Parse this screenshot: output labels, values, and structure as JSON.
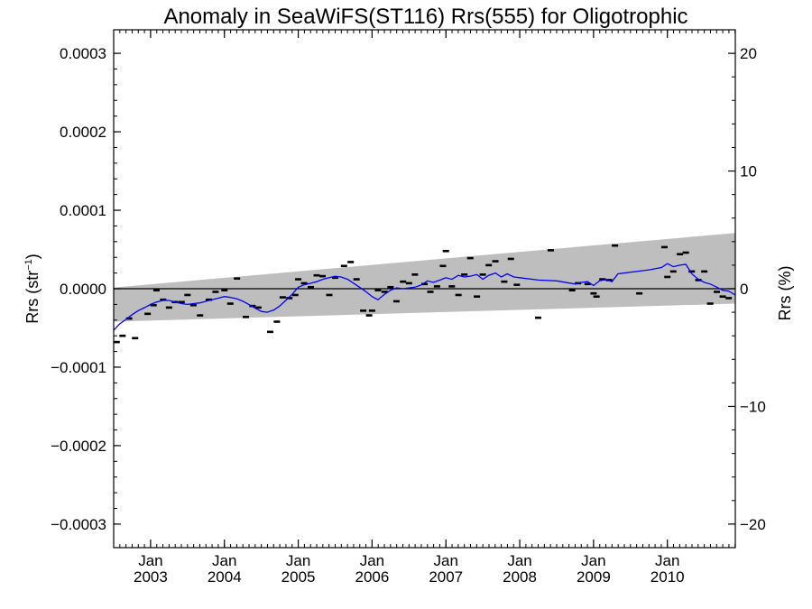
{
  "chart_data": {
    "type": "line",
    "title": "Anomaly in SeaWiFS(ST116) Rrs(555) for Oligotrophic",
    "ylabel_left": "Rrs (str",
    "ylabel_left_sup": "−1",
    "ylabel_left_close": ")",
    "ylabel_right": "Rrs (%)",
    "xlim": [
      2002.5,
      2010.92
    ],
    "ylim": [
      -0.00033,
      0.00033
    ],
    "ylim_right": [
      -22,
      22
    ],
    "x_ticks": [
      {
        "x": 2003.0,
        "month": "Jan",
        "year": "2003"
      },
      {
        "x": 2004.0,
        "month": "Jan",
        "year": "2004"
      },
      {
        "x": 2005.0,
        "month": "Jan",
        "year": "2005"
      },
      {
        "x": 2006.0,
        "month": "Jan",
        "year": "2006"
      },
      {
        "x": 2007.0,
        "month": "Jan",
        "year": "2007"
      },
      {
        "x": 2008.0,
        "month": "Jan",
        "year": "2008"
      },
      {
        "x": 2009.0,
        "month": "Jan",
        "year": "2009"
      },
      {
        "x": 2010.0,
        "month": "Jan",
        "year": "2010"
      }
    ],
    "y_ticks_left": [
      {
        "v": 0.0003,
        "label": "0.0003"
      },
      {
        "v": 0.0002,
        "label": "0.0002"
      },
      {
        "v": 0.0001,
        "label": "0.0001"
      },
      {
        "v": 0.0,
        "label": "0.0000"
      },
      {
        "v": -0.0001,
        "label": "−0.0001"
      },
      {
        "v": -0.0002,
        "label": "−0.0002"
      },
      {
        "v": -0.0003,
        "label": "−0.0003"
      }
    ],
    "y_ticks_right": [
      {
        "v": 20,
        "label": "20"
      },
      {
        "v": 10,
        "label": "10"
      },
      {
        "v": 0,
        "label": "0"
      },
      {
        "v": -10,
        "label": "−10"
      },
      {
        "v": -20,
        "label": "−20"
      }
    ],
    "uncertainty_band": {
      "x": [
        2002.5,
        2010.92
      ],
      "upper": [
        1.5e-06,
        7.1e-05
      ],
      "lower": [
        -4.2e-05,
        -1.9e-05
      ],
      "color": "#bebebe"
    },
    "zero_line": 0,
    "monthly_anomalies": {
      "marker": "dash",
      "color": "#000000",
      "points": [
        [
          2002.54,
          -6.8e-05
        ],
        [
          2002.62,
          -6e-05
        ],
        [
          2002.71,
          -3.8e-05
        ],
        [
          2002.79,
          -6.3e-05
        ],
        [
          2002.96,
          -3.2e-05
        ],
        [
          2003.04,
          -2.1e-05
        ],
        [
          2003.08,
          -2e-06
        ],
        [
          2003.17,
          -1.4e-05
        ],
        [
          2003.25,
          -2.4e-05
        ],
        [
          2003.33,
          -1.7e-05
        ],
        [
          2003.42,
          -1.7e-05
        ],
        [
          2003.5,
          -8e-06
        ],
        [
          2003.58,
          -2.1e-05
        ],
        [
          2003.67,
          -3.4e-05
        ],
        [
          2003.79,
          -1.4e-05
        ],
        [
          2003.88,
          -4e-06
        ],
        [
          2004.0,
          -2e-06
        ],
        [
          2004.08,
          -1.9e-05
        ],
        [
          2004.17,
          1.3e-05
        ],
        [
          2004.29,
          -3.6e-05
        ],
        [
          2004.38,
          -2.2e-05
        ],
        [
          2004.46,
          -2.4e-05
        ],
        [
          2004.62,
          -5.5e-05
        ],
        [
          2004.71,
          -4.2e-05
        ],
        [
          2004.79,
          -1.1e-05
        ],
        [
          2004.88,
          -1.2e-05
        ],
        [
          2004.96,
          -8e-06
        ],
        [
          2005.0,
          1.2e-05
        ],
        [
          2005.08,
          7e-06
        ],
        [
          2005.17,
          2e-06
        ],
        [
          2005.25,
          1.7e-05
        ],
        [
          2005.33,
          1.6e-05
        ],
        [
          2005.42,
          -8e-06
        ],
        [
          2005.5,
          1.4e-05
        ],
        [
          2005.62,
          2.9e-05
        ],
        [
          2005.71,
          3.4e-05
        ],
        [
          2005.79,
          1.2e-05
        ],
        [
          2005.88,
          -2.8e-05
        ],
        [
          2005.96,
          -3.4e-05
        ],
        [
          2006.0,
          -2.8e-05
        ],
        [
          2006.08,
          -2e-06
        ],
        [
          2006.17,
          -4e-06
        ],
        [
          2006.25,
          2e-06
        ],
        [
          2006.33,
          -1.6e-05
        ],
        [
          2006.42,
          9e-06
        ],
        [
          2006.5,
          7e-06
        ],
        [
          2006.58,
          1.8e-05
        ],
        [
          2006.71,
          6e-06
        ],
        [
          2006.79,
          -4e-06
        ],
        [
          2006.88,
          3e-06
        ],
        [
          2006.96,
          2.9e-05
        ],
        [
          2007.0,
          4.8e-05
        ],
        [
          2007.08,
          3e-06
        ],
        [
          2007.17,
          -8e-06
        ],
        [
          2007.25,
          1.8e-05
        ],
        [
          2007.33,
          3.9e-05
        ],
        [
          2007.42,
          -1e-05
        ],
        [
          2007.5,
          1.8e-05
        ],
        [
          2007.58,
          3e-05
        ],
        [
          2007.67,
          3.5e-05
        ],
        [
          2007.79,
          9e-06
        ],
        [
          2007.88,
          3.8e-05
        ],
        [
          2007.96,
          5e-06
        ],
        [
          2008.25,
          -3.7e-05
        ],
        [
          2008.42,
          4.9e-05
        ],
        [
          2008.71,
          -2e-06
        ],
        [
          2008.79,
          7e-06
        ],
        [
          2008.92,
          6e-06
        ],
        [
          2009.0,
          -6e-06
        ],
        [
          2009.04,
          -1e-05
        ],
        [
          2009.12,
          1.2e-05
        ],
        [
          2009.21,
          1.1e-05
        ],
        [
          2009.29,
          5.5e-05
        ],
        [
          2009.62,
          -6e-06
        ],
        [
          2009.96,
          5.3e-05
        ],
        [
          2010.0,
          1.5e-05
        ],
        [
          2010.08,
          2.2e-05
        ],
        [
          2010.17,
          4.4e-05
        ],
        [
          2010.25,
          4.6e-05
        ],
        [
          2010.33,
          2.2e-05
        ],
        [
          2010.42,
          1.1e-05
        ],
        [
          2010.5,
          2.2e-05
        ],
        [
          2010.58,
          -1.9e-05
        ],
        [
          2010.67,
          -4e-06
        ],
        [
          2010.75,
          -1e-05
        ],
        [
          2010.83,
          -1.2e-05
        ]
      ]
    },
    "series": [
      {
        "color": "#0000ff",
        "points": [
          [
            2002.5,
            -5.3e-05
          ],
          [
            2002.58,
            -4.5e-05
          ],
          [
            2002.67,
            -3.9e-05
          ],
          [
            2002.75,
            -3.3e-05
          ],
          [
            2002.83,
            -2.8e-05
          ],
          [
            2002.92,
            -2.4e-05
          ],
          [
            2003.0,
            -2e-05
          ],
          [
            2003.08,
            -1.7e-05
          ],
          [
            2003.17,
            -1.5e-05
          ],
          [
            2003.25,
            -1.5e-05
          ],
          [
            2003.33,
            -1.7e-05
          ],
          [
            2003.42,
            -1.9e-05
          ],
          [
            2003.5,
            -2e-05
          ],
          [
            2003.58,
            -1.9e-05
          ],
          [
            2003.67,
            -1.8e-05
          ],
          [
            2003.75,
            -1.6e-05
          ],
          [
            2003.83,
            -1.4e-05
          ],
          [
            2003.92,
            -1.2e-05
          ],
          [
            2004.0,
            -1e-05
          ],
          [
            2004.08,
            -1.1e-05
          ],
          [
            2004.17,
            -1.3e-05
          ],
          [
            2004.25,
            -1.6e-05
          ],
          [
            2004.33,
            -2e-05
          ],
          [
            2004.42,
            -2.5e-05
          ],
          [
            2004.5,
            -2.9e-05
          ],
          [
            2004.58,
            -3e-05
          ],
          [
            2004.67,
            -2.7e-05
          ],
          [
            2004.75,
            -2.2e-05
          ],
          [
            2004.83,
            -1.5e-05
          ],
          [
            2004.92,
            -7e-06
          ],
          [
            2005.0,
            2e-06
          ],
          [
            2005.08,
            5e-06
          ],
          [
            2005.17,
            7e-06
          ],
          [
            2005.25,
            9e-06
          ],
          [
            2005.33,
            1.2e-05
          ],
          [
            2005.42,
            1.4e-05
          ],
          [
            2005.5,
            1.6e-05
          ],
          [
            2005.58,
            1.5e-05
          ],
          [
            2005.67,
            1.2e-05
          ],
          [
            2005.75,
            7e-06
          ],
          [
            2005.83,
            2e-06
          ],
          [
            2005.92,
            -4e-06
          ],
          [
            2006.0,
            -1e-05
          ],
          [
            2006.08,
            -1.4e-05
          ],
          [
            2006.17,
            -7e-06
          ],
          [
            2006.25,
            -2e-06
          ],
          [
            2006.33,
            1e-06
          ],
          [
            2006.42,
            0.0
          ],
          [
            2006.5,
            1e-06
          ],
          [
            2006.58,
            2e-06
          ],
          [
            2006.67,
            5e-06
          ],
          [
            2006.75,
            1e-05
          ],
          [
            2006.83,
            8e-06
          ],
          [
            2006.92,
            1.1e-05
          ],
          [
            2007.0,
            1.4e-05
          ],
          [
            2007.08,
            1.2e-05
          ],
          [
            2007.17,
            1.7e-05
          ],
          [
            2007.25,
            1.5e-05
          ],
          [
            2007.33,
            1.6e-05
          ],
          [
            2007.42,
            1.8e-05
          ],
          [
            2007.5,
            1.2e-05
          ],
          [
            2007.58,
            1.7e-05
          ],
          [
            2007.67,
            2e-05
          ],
          [
            2007.75,
            1.5e-05
          ],
          [
            2007.83,
            1.9e-05
          ],
          [
            2007.92,
            1.5e-05
          ],
          [
            2008.0,
            1.4e-05
          ],
          [
            2008.25,
            1.1e-05
          ],
          [
            2008.5,
            1e-05
          ],
          [
            2008.75,
            6e-06
          ],
          [
            2008.83,
            8e-06
          ],
          [
            2008.92,
            9e-06
          ],
          [
            2009.0,
            4e-06
          ],
          [
            2009.08,
            1e-05
          ],
          [
            2009.17,
            1.2e-05
          ],
          [
            2009.25,
            9e-06
          ],
          [
            2009.33,
            1.9e-05
          ],
          [
            2009.75,
            2.4e-05
          ],
          [
            2009.92,
            2.7e-05
          ],
          [
            2010.0,
            3.2e-05
          ],
          [
            2010.08,
            2.8e-05
          ],
          [
            2010.17,
            3e-05
          ],
          [
            2010.25,
            3.1e-05
          ],
          [
            2010.33,
            1.9e-05
          ],
          [
            2010.42,
            1.2e-05
          ],
          [
            2010.5,
            8e-06
          ],
          [
            2010.58,
            6e-06
          ],
          [
            2010.67,
            2e-06
          ],
          [
            2010.75,
            -2e-06
          ],
          [
            2010.83,
            -3e-06
          ],
          [
            2010.92,
            -8e-06
          ]
        ]
      }
    ]
  }
}
